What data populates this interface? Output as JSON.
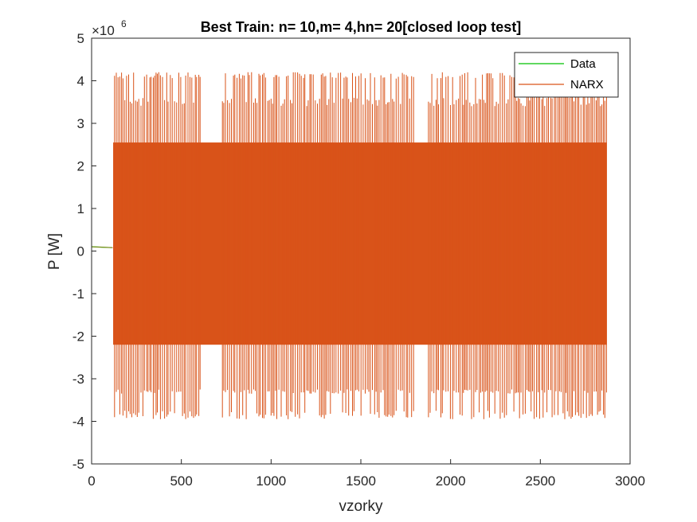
{
  "chart_data": {
    "type": "line",
    "title": "Best Train: n= 10,m= 4,hn= 20[closed loop test]",
    "xlabel": "vzorky",
    "ylabel": "P [W]",
    "exponent_label": "×10",
    "exponent_power": "6",
    "xlim": [
      0,
      3000
    ],
    "ylim": [
      -5,
      5
    ],
    "xticks": [
      "0",
      "500",
      "1000",
      "1500",
      "2000",
      "2500",
      "3000"
    ],
    "yticks": [
      "-5",
      "-4",
      "-3",
      "-2",
      "-1",
      "0",
      "1",
      "2",
      "3",
      "4",
      "5"
    ],
    "legend_position": "top-right",
    "series": [
      {
        "name": "Data",
        "color": "#00c000",
        "description_points": {
          "x": [
            0,
            115
          ],
          "y": [
            0.1,
            0.08
          ]
        }
      },
      {
        "name": "NARX",
        "color": "#d95319",
        "start_x": 120,
        "end_x": 2870,
        "core_band": [
          -2.2,
          2.55
        ],
        "peak_max": 4.2,
        "peak_min": -3.95,
        "mid_spike_high": 3.6,
        "mid_spike_low": -3.25,
        "gaps": [
          [
            610,
            720
          ],
          [
            1800,
            1870
          ]
        ]
      }
    ]
  }
}
